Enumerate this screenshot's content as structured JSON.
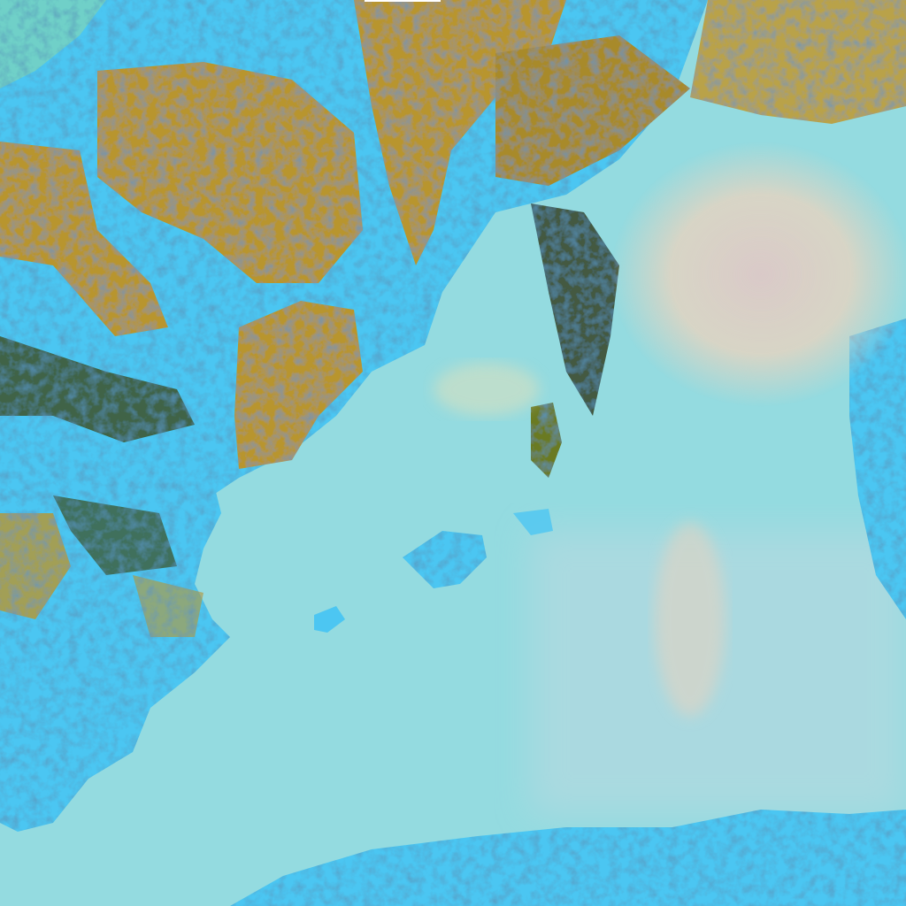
{
  "image": {
    "kind": "false-color satellite image",
    "colors": {
      "sea": "#94dbe0",
      "sea_haze": "#b9e0da",
      "land_dry": "#b8952f",
      "land_dark": "#3c4a1c",
      "land_edge": "#2fd27a",
      "cloud_low": "#4cc6f2",
      "cloud_high": "#e9d6c6",
      "marker": "#ffffff"
    }
  }
}
